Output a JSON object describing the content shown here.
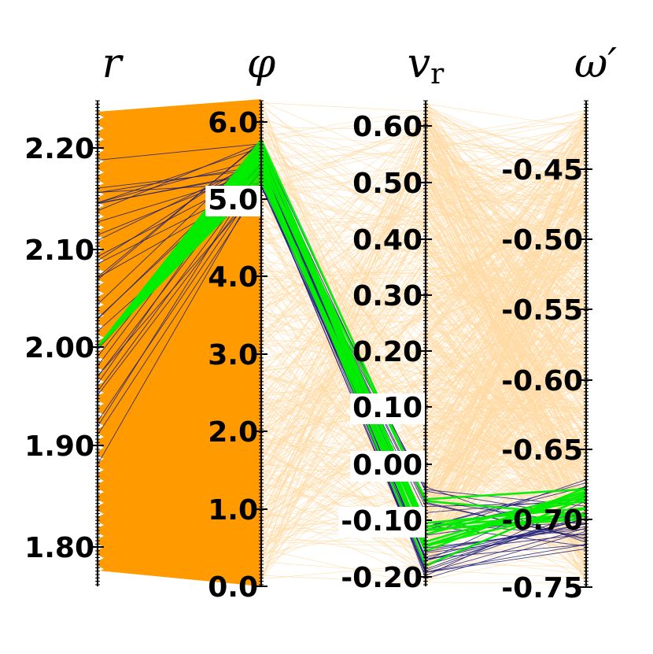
{
  "chart_data": {
    "type": "parallel-coordinates",
    "axes": [
      {
        "id": "r",
        "title": "r",
        "ticks": [
          "1.80",
          "1.90",
          "2.00",
          "2.10",
          "2.20"
        ],
        "tick_values": [
          1.8,
          1.9,
          2.0,
          2.1,
          2.2
        ],
        "range": [
          1.775,
          2.235
        ]
      },
      {
        "id": "phi",
        "title": "φ",
        "ticks": [
          "0.0",
          "1.0",
          "2.0",
          "3.0",
          "4.0",
          "5.0",
          "6.0"
        ],
        "tick_values": [
          0,
          1,
          2,
          3,
          4,
          5,
          6
        ],
        "range": [
          0.0,
          6.3
        ]
      },
      {
        "id": "vr",
        "title": "v",
        "title_sub": "r",
        "ticks": [
          "-0.20",
          "-0.10",
          "0.00",
          "0.10",
          "0.20",
          "0.30",
          "0.40",
          "0.50",
          "0.60"
        ],
        "tick_values": [
          -0.2,
          -0.1,
          0.0,
          0.1,
          0.2,
          0.3,
          0.4,
          0.5,
          0.6
        ],
        "range": [
          -0.215,
          0.635
        ]
      },
      {
        "id": "omega",
        "title": "ω′",
        "ticks": [
          "-0.75",
          "-0.70",
          "-0.65",
          "-0.60",
          "-0.55",
          "-0.50",
          "-0.45"
        ],
        "tick_values": [
          -0.75,
          -0.7,
          -0.65,
          -0.6,
          -0.55,
          -0.5,
          -0.45
        ],
        "range": [
          -0.757,
          -0.415
        ]
      }
    ],
    "series": [
      {
        "role": "background",
        "color": "#FFD9A3"
      },
      {
        "role": "filled-region",
        "color": "#FF9A00"
      },
      {
        "role": "selected-group",
        "color": "#1A1A7A"
      },
      {
        "role": "highlight",
        "color": "#00EE00"
      }
    ],
    "highlight_line": {
      "r": 2.0,
      "phi": 5.7,
      "vr": -0.205,
      "omega": -0.695
    }
  }
}
